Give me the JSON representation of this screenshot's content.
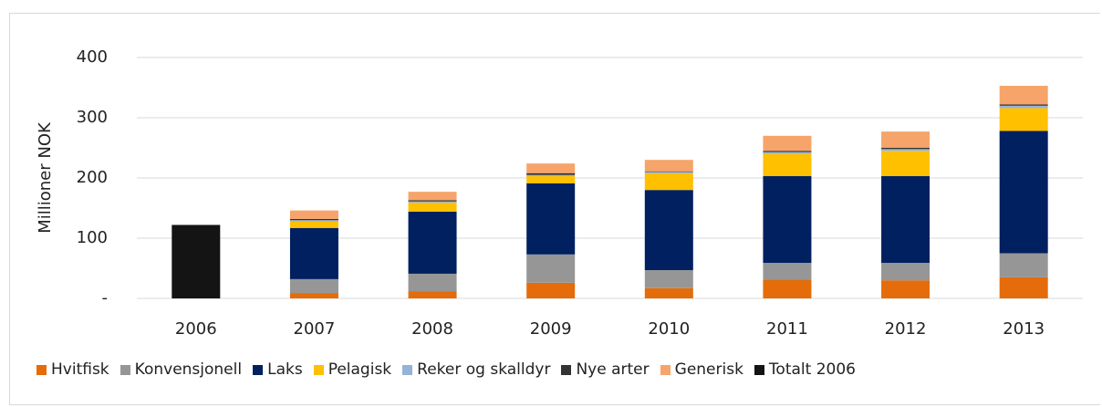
{
  "chart_data": {
    "type": "stacked_bar",
    "y_label": "Millioner NOK",
    "categories": [
      "2006",
      "2007",
      "2008",
      "2009",
      "2010",
      "2011",
      "2012",
      "2013"
    ],
    "series": [
      {
        "name": "Hvitfisk",
        "color": "#e46c0a",
        "values": [
          null,
          9,
          12,
          26,
          17,
          31,
          30,
          35
        ]
      },
      {
        "name": "Konvensjonell",
        "color": "#969696",
        "values": [
          null,
          23,
          29,
          47,
          30,
          28,
          29,
          40
        ]
      },
      {
        "name": "Laks",
        "color": "#002060",
        "values": [
          null,
          85,
          103,
          118,
          133,
          144,
          144,
          203
        ]
      },
      {
        "name": "Pelagisk",
        "color": "#ffc000",
        "values": [
          null,
          11,
          15,
          12,
          28,
          37,
          42,
          38
        ]
      },
      {
        "name": "Reker og skalldyr",
        "color": "#95b3d7",
        "values": [
          null,
          2,
          2,
          2,
          2,
          3,
          3,
          4
        ]
      },
      {
        "name": "Nye arter",
        "color": "#333333",
        "values": [
          null,
          2,
          2,
          3,
          1,
          2,
          2,
          2
        ]
      },
      {
        "name": "Generisk",
        "color": "#f6a46a",
        "values": [
          null,
          14,
          14,
          16,
          19,
          25,
          27,
          31
        ]
      },
      {
        "name": "Totalt 2006",
        "color": "#141414",
        "values": [
          122,
          null,
          null,
          null,
          null,
          null,
          null,
          null
        ]
      }
    ],
    "ylim": [
      0,
      400
    ],
    "yticks": [
      {
        "value": 0,
        "label": "-"
      },
      100,
      200,
      300,
      400
    ],
    "grid": true,
    "legend": "bottom"
  }
}
